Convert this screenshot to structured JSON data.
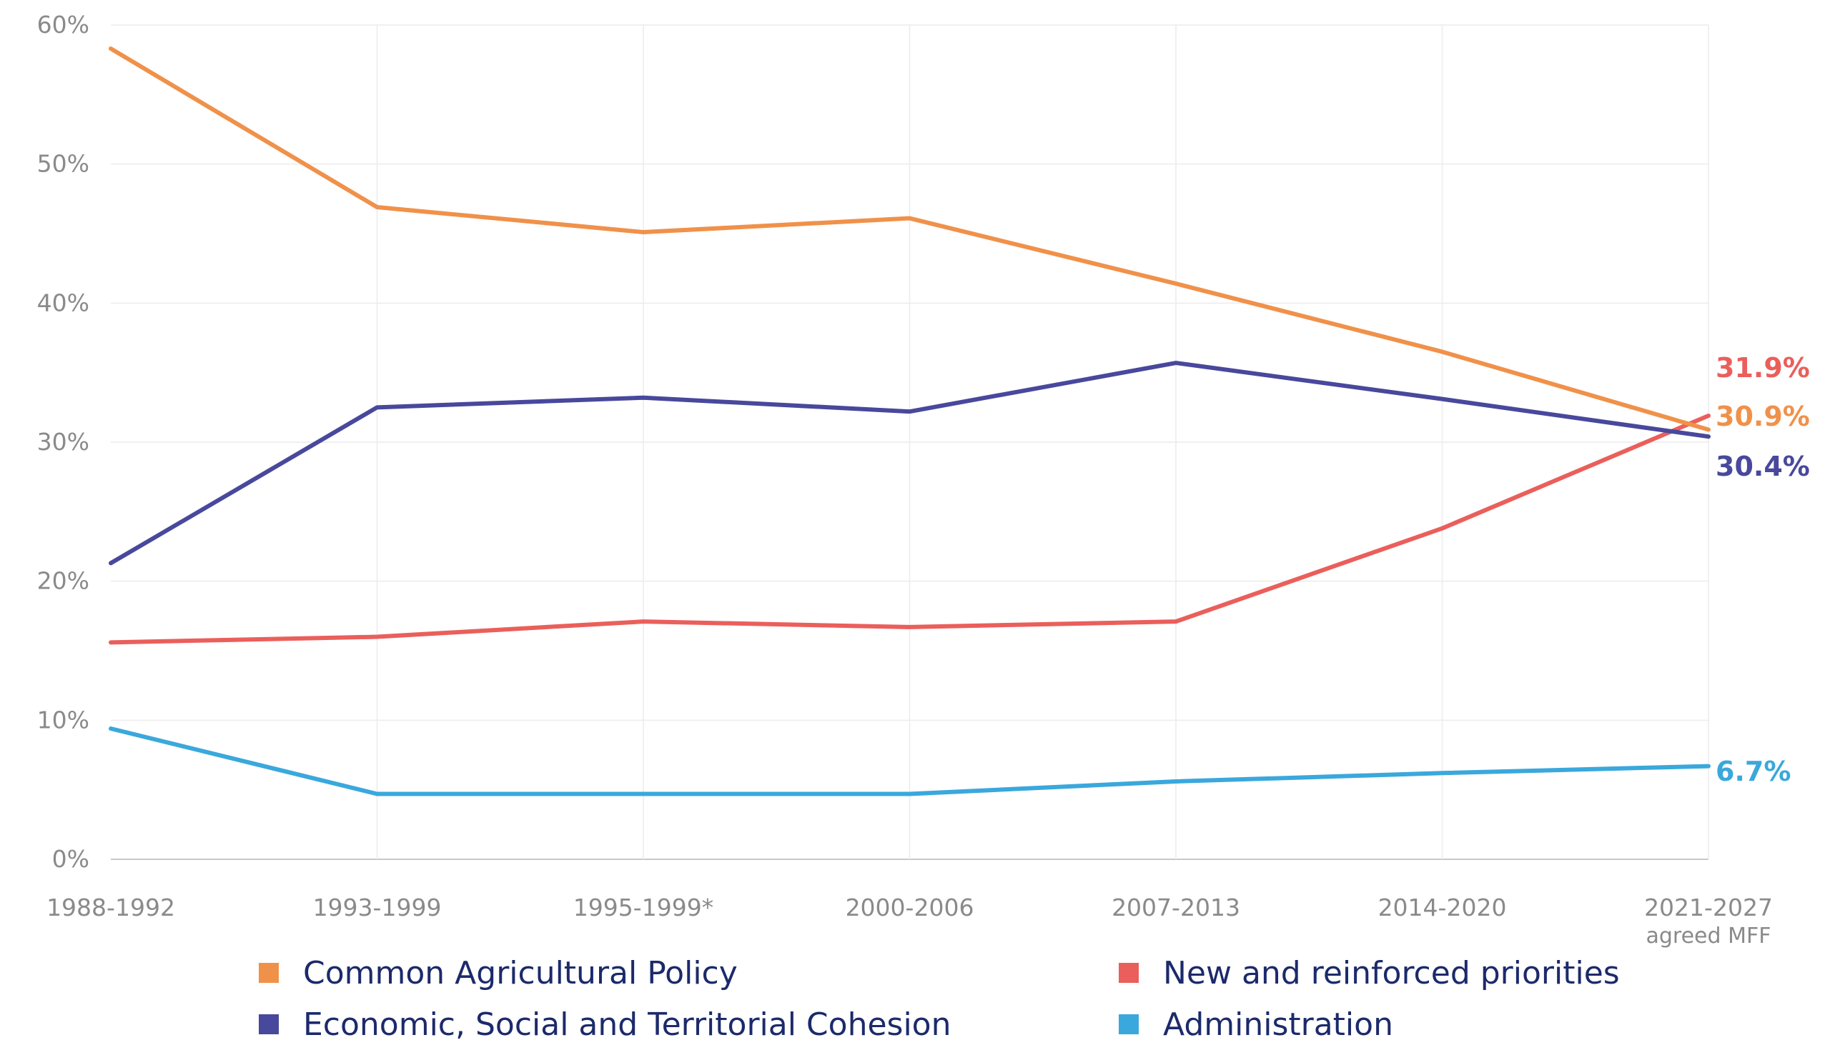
{
  "chart_data": {
    "type": "line",
    "title": "",
    "xlabel": "",
    "ylabel": "",
    "ylim": [
      0,
      60
    ],
    "y_ticks": [
      "0%",
      "10%",
      "20%",
      "30%",
      "40%",
      "50%",
      "60%"
    ],
    "y_tick_values": [
      0,
      10,
      20,
      30,
      40,
      50,
      60
    ],
    "grid": true,
    "categories": [
      "1988-1992",
      "1993-1999",
      "1995-1999*",
      "2000-2006",
      "2007-2013",
      "2014-2020",
      "2021-2027"
    ],
    "category_sublabels": [
      "",
      "",
      "",
      "",
      "",
      "",
      "agreed MFF"
    ],
    "legend_position": "bottom",
    "series": [
      {
        "key": "cap",
        "name": "Common Agricultural Policy",
        "color": "#f0914a",
        "values": [
          58.3,
          46.9,
          45.1,
          46.1,
          41.4,
          36.5,
          30.9
        ],
        "end_label": "30.9%"
      },
      {
        "key": "nrp",
        "name": "New and reinforced priorities",
        "color": "#ea5f5b",
        "values": [
          15.6,
          16.0,
          17.1,
          16.7,
          17.1,
          23.8,
          31.9
        ],
        "end_label": "31.9%"
      },
      {
        "key": "cohesion",
        "name": "Economic, Social and Territorial Cohesion",
        "color": "#48489c",
        "values": [
          21.3,
          32.5,
          33.2,
          32.2,
          35.7,
          33.1,
          30.4
        ],
        "end_label": "30.4%"
      },
      {
        "key": "admin",
        "name": "Administration",
        "color": "#3aa8dc",
        "values": [
          9.4,
          4.7,
          4.7,
          4.7,
          5.6,
          6.2,
          6.7
        ],
        "end_label": "6.7%"
      }
    ]
  }
}
